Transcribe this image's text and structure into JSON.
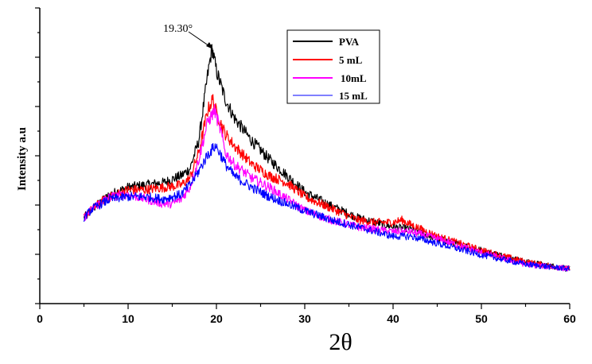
{
  "chart_data": {
    "type": "line",
    "title": "",
    "xlabel": "2θ",
    "ylabel": "Intensity a.u",
    "xlim": [
      0,
      60
    ],
    "ylim": [
      0,
      100
    ],
    "x_ticks": [
      "0",
      "10",
      "20",
      "30",
      "40",
      "50",
      "60"
    ],
    "y_ticks_labeled": false,
    "grid": false,
    "legend_position": "top-right",
    "annotation": {
      "text": "19.30°",
      "x": 19.3,
      "y": 100
    },
    "series": [
      {
        "name": "PVA",
        "color": "#000000",
        "x": [
          5,
          6,
          7,
          8,
          10,
          12,
          14,
          16,
          17,
          18,
          19,
          19.5,
          20,
          21,
          22,
          24,
          26,
          28,
          30,
          33,
          36,
          38,
          40,
          42,
          45,
          50,
          55,
          60
        ],
        "y": [
          27,
          31,
          34,
          37,
          40,
          41,
          42,
          45,
          48,
          60,
          88,
          100,
          90,
          78,
          70,
          60,
          52,
          45,
          38,
          32,
          27,
          25,
          23,
          22,
          18,
          13,
          8,
          5
        ]
      },
      {
        "name": "5 mL",
        "color": "#ff0000",
        "x": [
          5,
          6,
          7,
          8,
          10,
          12,
          14,
          16,
          17,
          18,
          19,
          19.6,
          20,
          21,
          22,
          24,
          26,
          28,
          30,
          33,
          36,
          38,
          40,
          41,
          42,
          45,
          50,
          55,
          60
        ],
        "y": [
          27,
          31,
          34,
          36,
          39,
          39,
          40,
          41,
          44,
          55,
          73,
          78,
          72,
          63,
          58,
          50,
          45,
          42,
          36,
          31,
          26,
          25,
          25,
          26,
          24,
          19,
          13,
          8,
          5
        ]
      },
      {
        "name": "10mL",
        "color": "#ff00ff",
        "x": [
          5,
          6,
          7,
          8,
          10,
          12,
          14,
          15,
          16,
          17,
          18,
          19,
          19.8,
          20.5,
          21,
          22,
          24,
          26,
          28,
          30,
          33,
          36,
          38,
          40,
          42,
          45,
          50,
          55,
          60
        ],
        "y": [
          27,
          31,
          34,
          36,
          37,
          35,
          33,
          33,
          35,
          40,
          52,
          68,
          73,
          64,
          55,
          50,
          44,
          40,
          35,
          30,
          26,
          23,
          22,
          21,
          21,
          18,
          12,
          7,
          5
        ]
      },
      {
        "name": "15 mL",
        "color": "#0000ff",
        "x": [
          5,
          6,
          7,
          8,
          10,
          12,
          14,
          16,
          17,
          18,
          19,
          19.9,
          20.5,
          21,
          22,
          24,
          26,
          28,
          30,
          33,
          36,
          38,
          40,
          42,
          45,
          50,
          55,
          60
        ],
        "y": [
          27,
          31,
          33,
          35,
          36,
          36,
          35,
          37,
          41,
          47,
          54,
          58,
          54,
          50,
          45,
          40,
          36,
          33,
          30,
          26,
          23,
          21,
          19,
          19,
          16,
          11,
          7,
          5
        ]
      }
    ]
  }
}
